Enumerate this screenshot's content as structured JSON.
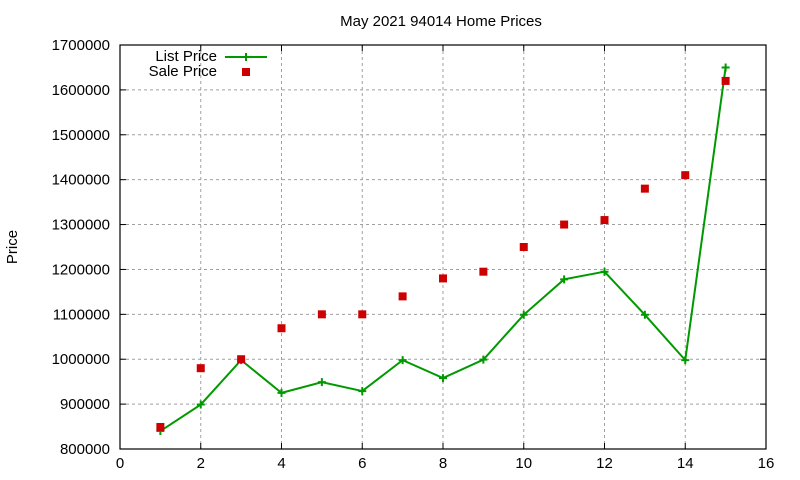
{
  "chart_data": {
    "type": "line",
    "title": "May 2021 94014 Home Prices",
    "xlabel": "",
    "ylabel": "Price",
    "xlim": [
      0,
      16
    ],
    "ylim": [
      800000,
      1700000
    ],
    "xticks": [
      0,
      2,
      4,
      6,
      8,
      10,
      12,
      14,
      16
    ],
    "yticks": [
      800000,
      900000,
      1000000,
      1100000,
      1200000,
      1300000,
      1400000,
      1500000,
      1600000,
      1700000
    ],
    "grid": true,
    "legend_position": "top-left",
    "x": [
      1,
      2,
      3,
      4,
      5,
      6,
      7,
      8,
      9,
      10,
      11,
      12,
      13,
      14,
      15
    ],
    "series": [
      {
        "name": "List Price",
        "style": "linespoints",
        "marker": "plus",
        "color": "#009900",
        "values": [
          840000,
          899000,
          998000,
          925000,
          949000,
          929000,
          998000,
          958000,
          999000,
          1099000,
          1178000,
          1195000,
          1099000,
          998000,
          1650000
        ]
      },
      {
        "name": "Sale Price",
        "style": "points",
        "marker": "square",
        "color": "#cc0000",
        "values": [
          849000,
          980000,
          1000000,
          1069000,
          1100000,
          1100000,
          1140000,
          1180000,
          1195000,
          1250000,
          1300000,
          1310000,
          1380000,
          1410000,
          1620000
        ]
      }
    ]
  }
}
